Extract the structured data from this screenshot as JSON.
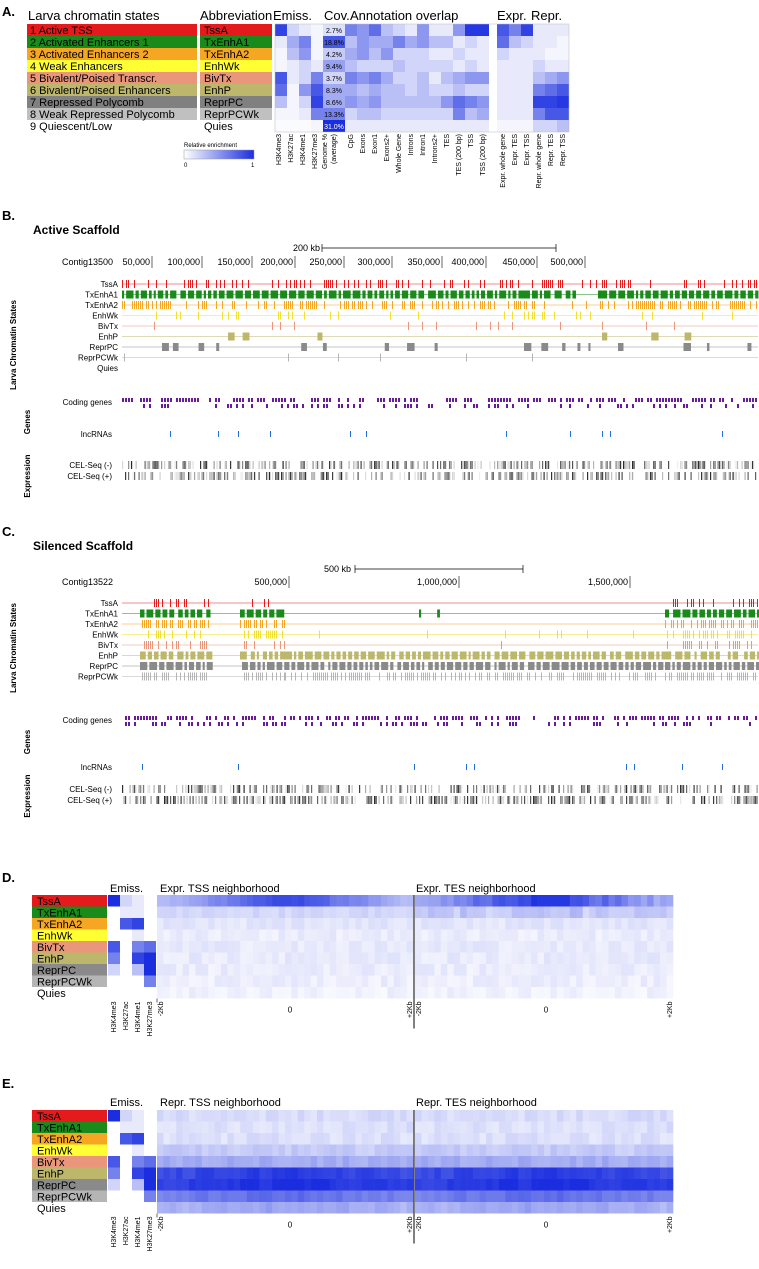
{
  "panelA": {
    "letter": "A.",
    "header_states": "Larva chromatin states",
    "header_abbrev": "Abbreviation",
    "header_emiss": "Emiss.",
    "header_cov": "Cov.",
    "header_overlap": "Annotation overlap",
    "header_expr": "Expr.",
    "header_repr": "Repr.",
    "states": [
      {
        "num": "1",
        "name": "Active TSS",
        "abbr": "TssA",
        "color": "#e41a1c"
      },
      {
        "num": "2",
        "name": "Activated Enhancers 1",
        "abbr": "TxEnhA1",
        "color": "#1a8a1a"
      },
      {
        "num": "3",
        "name": "Activated Enhancers 2",
        "abbr": "TxEnhA2",
        "color": "#f5a623"
      },
      {
        "num": "4",
        "name": "Weak Enhancers",
        "abbr": "EnhWk",
        "color": "#ffff33"
      },
      {
        "num": "5",
        "name": "Bivalent/Poised Transcr.",
        "abbr": "BivTx",
        "color": "#e9967a"
      },
      {
        "num": "6",
        "name": "Bivalent/Poised Enhancers",
        "abbr": "EnhP",
        "color": "#bdb76b"
      },
      {
        "num": "7",
        "name": "Repressed Polycomb",
        "abbr": "ReprPC",
        "color": "#808080"
      },
      {
        "num": "8",
        "name": "Weak Repressed Polycomb",
        "abbr": "ReprPCWk",
        "color": "#c0c0c0"
      },
      {
        "num": "9",
        "name": "Quiescent/Low",
        "abbr": "Quies",
        "color": "#ffffff"
      }
    ],
    "coverage": [
      "2.7%",
      "18.8%",
      "4.2%",
      "9.4%",
      "3.7%",
      "8.3%",
      "8.6%",
      "13.3%",
      "31.0%"
    ],
    "col_labels": [
      "H3K4me3",
      "H3K27ac",
      "H3K4me1",
      "H3K27me3",
      "Genome % (average)",
      "CpG",
      "Exons",
      "Exon1",
      "Exons2+",
      "Whole Gene",
      "Introns",
      "Intron1",
      "Introns2+",
      "TES",
      "TES (200 bp)",
      "TSS",
      "TSS (200 bp)",
      "Expr. whole gene",
      "Expr. TES",
      "Expr. TSS",
      "Repr. whole gene",
      "Repr. TES",
      "Repr. TSS"
    ],
    "legend_title": "Relative enrichment",
    "legend_min": "0",
    "legend_max": "1"
  },
  "panelB": {
    "letter": "B.",
    "title": "Active Scaffold",
    "scale_label": "200 kb",
    "contig": "Contig13500",
    "ticks": [
      "50,000",
      "100,000",
      "150,000",
      "200,000",
      "250,000",
      "300,000",
      "350,000",
      "400,000",
      "450,000",
      "500,000"
    ],
    "side_states": "Larva Chromatin States",
    "side_genes": "Genes",
    "side_expr": "Expression",
    "track_states": [
      "TssA",
      "TxEnhA1",
      "TxEnhA2",
      "EnhWk",
      "BivTx",
      "EnhP",
      "ReprPC",
      "ReprPCWk",
      "Quies"
    ],
    "track_coding": "Coding genes",
    "track_lnc": "lncRNAs",
    "track_cel_minus": "CEL-Seq (-)",
    "track_cel_plus": "CEL-Seq (+)"
  },
  "panelC": {
    "letter": "C.",
    "title": "Silenced Scaffold",
    "scale_label": "500 kb",
    "contig": "Contig13522",
    "ticks": [
      "500,000",
      "1,000,000",
      "1,500,000"
    ],
    "side_states": "Larva Chromatin States",
    "side_genes": "Genes",
    "side_expr": "Expression",
    "track_states": [
      "TssA",
      "TxEnhA1",
      "TxEnhA2",
      "EnhWk",
      "BivTx",
      "EnhP",
      "ReprPC",
      "ReprPCWk"
    ],
    "track_coding": "Coding genes",
    "track_lnc": "lncRNAs",
    "track_cel_minus": "CEL-Seq (-)",
    "track_cel_plus": "CEL-Seq (+)"
  },
  "panelD": {
    "letter": "D.",
    "emiss": "Emiss.",
    "title_left": "Expr. TSS neighborhood",
    "title_right": "Expr. TES neighborhood",
    "states": [
      "TssA",
      "TxEnhA1",
      "TxEnhA2",
      "EnhWk",
      "BivTx",
      "EnhP",
      "ReprPC",
      "ReprPCWk",
      "Quies"
    ],
    "marks": [
      "H3K4me3",
      "H3K27ac",
      "H3K4me1",
      "H3K27me3"
    ],
    "x_left": [
      "-2Kb",
      "0",
      "+2Kb"
    ],
    "x_right": [
      "-2Kb",
      "0",
      "+2Kb"
    ]
  },
  "panelE": {
    "letter": "E.",
    "emiss": "Emiss.",
    "title_left": "Repr. TSS neighborhood",
    "title_right": "Repr. TES neighborhood",
    "states": [
      "TssA",
      "TxEnhA1",
      "TxEnhA2",
      "EnhWk",
      "BivTx",
      "EnhP",
      "ReprPC",
      "ReprPCWk",
      "Quies"
    ],
    "marks": [
      "H3K4me3",
      "H3K27ac",
      "H3K4me1",
      "H3K27me3"
    ],
    "x_left": [
      "-2Kb",
      "0",
      "+2Kb"
    ],
    "x_right": [
      "-2Kb",
      "0",
      "+2Kb"
    ]
  }
}
